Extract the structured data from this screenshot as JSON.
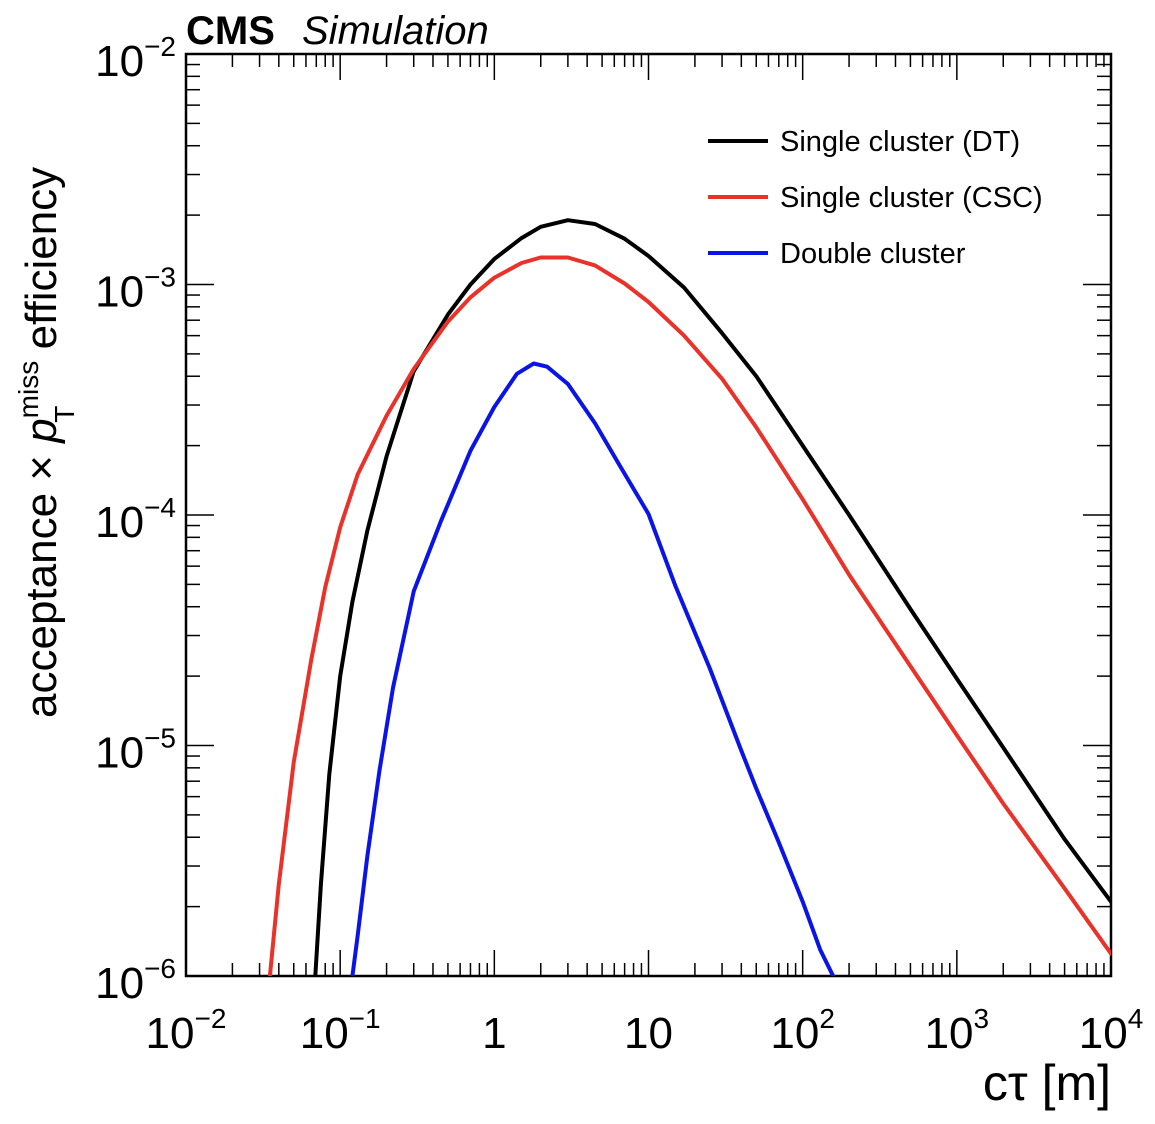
{
  "header": {
    "experiment": "CMS",
    "status": "Simulation"
  },
  "chart_data": {
    "type": "line",
    "x_scale": "log",
    "y_scale": "log",
    "xlim": [
      0.01,
      10000
    ],
    "ylim": [
      1e-06,
      0.01
    ],
    "xlabel": "cτ [m]",
    "ylabel": {
      "prefix": "acceptance × ",
      "symbol": "p",
      "subscript": "T",
      "superscript": "miss",
      "suffix": " efficiency"
    },
    "x_ticks": [
      {
        "value": 0.01,
        "base": "10",
        "exp": "−2"
      },
      {
        "value": 0.1,
        "base": "10",
        "exp": "−1"
      },
      {
        "value": 1,
        "base": "1",
        "exp": ""
      },
      {
        "value": 10,
        "base": "10",
        "exp": ""
      },
      {
        "value": 100,
        "base": "10",
        "exp": "2"
      },
      {
        "value": 1000,
        "base": "10",
        "exp": "3"
      },
      {
        "value": 10000,
        "base": "10",
        "exp": "4"
      }
    ],
    "y_ticks": [
      {
        "value": 1e-06,
        "base": "10",
        "exp": "−6"
      },
      {
        "value": 1e-05,
        "base": "10",
        "exp": "−5"
      },
      {
        "value": 0.0001,
        "base": "10",
        "exp": "−4"
      },
      {
        "value": 0.001,
        "base": "10",
        "exp": "−3"
      },
      {
        "value": 0.01,
        "base": "10",
        "exp": "−2"
      }
    ],
    "legend_position": "top-right",
    "series": [
      {
        "name": "Single cluster (DT)",
        "color": "#000000",
        "x": [
          0.069,
          0.075,
          0.085,
          0.1,
          0.12,
          0.15,
          0.2,
          0.3,
          0.5,
          0.7,
          1.0,
          1.5,
          2.0,
          3.0,
          4.5,
          7.0,
          10,
          17,
          30,
          50,
          100,
          200,
          500,
          1000,
          2000,
          5000,
          10000
        ],
        "y": [
          1e-06,
          2.5e-06,
          7.5e-06,
          2e-05,
          4.2e-05,
          8.53e-05,
          0.00018,
          0.00042,
          0.00074,
          0.001,
          0.00129,
          0.00159,
          0.00178,
          0.0019,
          0.00183,
          0.00158,
          0.00133,
          0.00097,
          0.000615,
          0.0004,
          0.0002,
          0.0001,
          3.91e-05,
          1.95e-05,
          9.8e-06,
          3.92e-06,
          2.1e-06
        ]
      },
      {
        "name": "Single cluster (CSC)",
        "color": "#e8322a",
        "x": [
          0.035,
          0.04,
          0.05,
          0.065,
          0.08,
          0.1,
          0.13,
          0.2,
          0.3,
          0.5,
          0.7,
          1.0,
          1.5,
          2.0,
          3.0,
          4.5,
          7.0,
          10,
          17,
          30,
          50,
          100,
          200,
          500,
          1000,
          2000,
          5000,
          10000
        ],
        "y": [
          1e-06,
          2.5e-06,
          8.5e-06,
          2.36e-05,
          4.85e-05,
          8.84e-05,
          0.00015,
          0.00027,
          0.00043,
          0.00069,
          0.00088,
          0.00107,
          0.00124,
          0.00131,
          0.00131,
          0.00121,
          0.00101,
          0.00084,
          0.0006,
          0.00039,
          0.00024,
          0.000117,
          5.51e-05,
          2.21e-05,
          1.11e-05,
          5.6e-06,
          2.4e-06,
          1.25e-06
        ]
      },
      {
        "name": "Double cluster",
        "color": "#0a14e6",
        "x": [
          0.12,
          0.13,
          0.15,
          0.18,
          0.22,
          0.3,
          0.45,
          0.7,
          1.0,
          1.4,
          1.8,
          2.2,
          3.0,
          4.5,
          6.5,
          10,
          15,
          25,
          40,
          50,
          70,
          100,
          130,
          160
        ],
        "y": [
          1e-06,
          1.5e-06,
          3.3e-06,
          7.8e-06,
          1.78e-05,
          4.66e-05,
          9.4e-05,
          0.00019,
          0.000294,
          0.00041,
          0.000454,
          0.00044,
          0.00037,
          0.00025,
          0.000164,
          0.000101,
          4.9e-05,
          2.16e-05,
          9.5e-06,
          6.5e-06,
          3.8e-06,
          2.1e-06,
          1.3e-06,
          9.8e-07
        ]
      }
    ]
  }
}
